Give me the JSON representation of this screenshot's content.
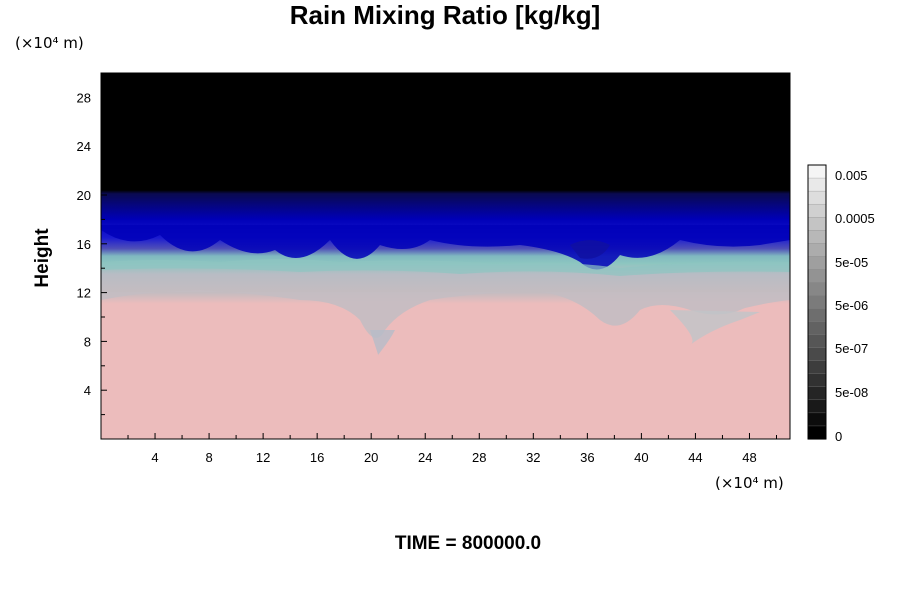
{
  "chart_data": {
    "type": "heatmap",
    "title": "Rain Mixing Ratio [kg/kg]",
    "xlabel": "",
    "ylabel": "Height",
    "x_unit": "(×10⁴ m)",
    "y_unit": "(×10⁴ m)",
    "xlim": [
      0,
      51
    ],
    "ylim": [
      0,
      30
    ],
    "x_ticks": [
      4,
      8,
      12,
      16,
      20,
      24,
      28,
      32,
      36,
      40,
      44,
      48
    ],
    "y_ticks": [
      4,
      8,
      12,
      16,
      20,
      24,
      28
    ],
    "colorbar": {
      "labels": [
        "0.005",
        "0.0005",
        "5e-05",
        "5e-06",
        "5e-07",
        "5e-08",
        "0"
      ]
    },
    "layers": [
      {
        "name": "pink",
        "color": "#ecbcbc",
        "top_approx": 11
      },
      {
        "name": "gray",
        "color": "#bcbcbc",
        "top_approx": 14
      },
      {
        "name": "teal",
        "color": "#8cc0c0",
        "top_approx": 15
      },
      {
        "name": "purple-blue",
        "color": "#4040a0",
        "top_approx": 16
      },
      {
        "name": "blue",
        "color": "#0000c0",
        "top_approx": 20
      },
      {
        "name": "black",
        "color": "#000000",
        "top_approx": 30
      }
    ],
    "grid": false,
    "footer": "TIME = 800000.0"
  },
  "colors": {
    "background": "#ffffff",
    "axis": "#000000"
  }
}
